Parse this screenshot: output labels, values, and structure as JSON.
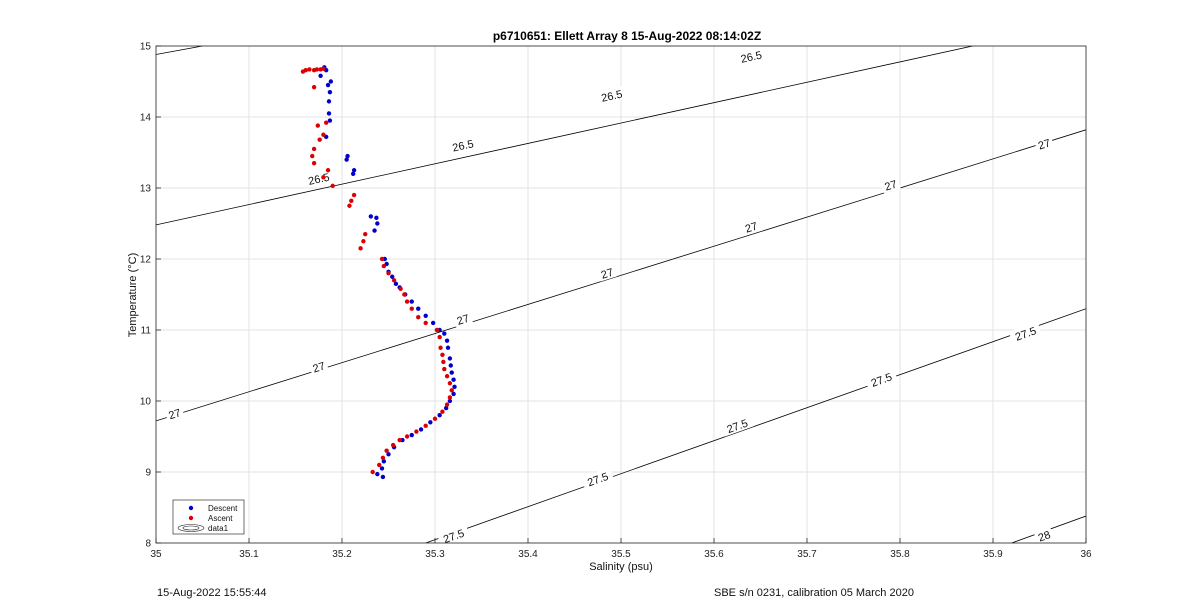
{
  "chart_data": {
    "type": "scatter",
    "title": "p6710651: Ellett Array 8 15-Aug-2022 08:14:02Z",
    "xlabel": "Salinity (psu)",
    "ylabel": "Temperature (°C)",
    "xlim": [
      35,
      36
    ],
    "ylim": [
      8,
      15
    ],
    "xticks": [
      "35",
      "35.1",
      "35.2",
      "35.3",
      "35.4",
      "35.5",
      "35.6",
      "35.7",
      "35.8",
      "35.9",
      "36"
    ],
    "yticks": [
      "8",
      "9",
      "10",
      "11",
      "12",
      "13",
      "14",
      "15"
    ],
    "grid": true,
    "legend_position": "bottom-left",
    "legend": [
      "Descent",
      "Ascent",
      "data1"
    ],
    "colors": {
      "descent": "#0000cc",
      "ascent": "#dd0000",
      "contour": "#000000"
    },
    "series": [
      {
        "name": "Descent",
        "points": [
          [
            35.244,
            8.93
          ],
          [
            35.238,
            8.97
          ],
          [
            35.243,
            9.05
          ],
          [
            35.245,
            9.15
          ],
          [
            35.25,
            9.25
          ],
          [
            35.256,
            9.35
          ],
          [
            35.265,
            9.45
          ],
          [
            35.275,
            9.52
          ],
          [
            35.285,
            9.6
          ],
          [
            35.295,
            9.7
          ],
          [
            35.305,
            9.8
          ],
          [
            35.312,
            9.9
          ],
          [
            35.316,
            10.0
          ],
          [
            35.32,
            10.1
          ],
          [
            35.321,
            10.2
          ],
          [
            35.32,
            10.3
          ],
          [
            35.318,
            10.4
          ],
          [
            35.317,
            10.5
          ],
          [
            35.316,
            10.6
          ],
          [
            35.314,
            10.75
          ],
          [
            35.313,
            10.85
          ],
          [
            35.31,
            10.95
          ],
          [
            35.305,
            11.0
          ],
          [
            35.298,
            11.1
          ],
          [
            35.29,
            11.2
          ],
          [
            35.282,
            11.3
          ],
          [
            35.275,
            11.4
          ],
          [
            35.268,
            11.5
          ],
          [
            35.262,
            11.6
          ],
          [
            35.258,
            11.65
          ],
          [
            35.254,
            11.75
          ],
          [
            35.25,
            11.82
          ],
          [
            35.248,
            11.93
          ],
          [
            35.246,
            12.0
          ],
          [
            35.235,
            12.4
          ],
          [
            35.238,
            12.5
          ],
          [
            35.237,
            12.58
          ],
          [
            35.231,
            12.6
          ],
          [
            35.212,
            13.2
          ],
          [
            35.213,
            13.25
          ],
          [
            35.205,
            13.4
          ],
          [
            35.206,
            13.45
          ],
          [
            35.183,
            13.72
          ],
          [
            35.187,
            13.95
          ],
          [
            35.186,
            14.05
          ],
          [
            35.186,
            14.22
          ],
          [
            35.187,
            14.35
          ],
          [
            35.185,
            14.45
          ],
          [
            35.188,
            14.5
          ],
          [
            35.177,
            14.58
          ],
          [
            35.183,
            14.66
          ],
          [
            35.181,
            14.7
          ]
        ]
      },
      {
        "name": "Ascent",
        "points": [
          [
            35.233,
            9.0
          ],
          [
            35.24,
            9.1
          ],
          [
            35.244,
            9.2
          ],
          [
            35.248,
            9.3
          ],
          [
            35.255,
            9.38
          ],
          [
            35.262,
            9.45
          ],
          [
            35.27,
            9.5
          ],
          [
            35.28,
            9.57
          ],
          [
            35.29,
            9.65
          ],
          [
            35.3,
            9.75
          ],
          [
            35.308,
            9.85
          ],
          [
            35.313,
            9.95
          ],
          [
            35.316,
            10.05
          ],
          [
            35.318,
            10.15
          ],
          [
            35.316,
            10.25
          ],
          [
            35.313,
            10.35
          ],
          [
            35.31,
            10.45
          ],
          [
            35.309,
            10.55
          ],
          [
            35.308,
            10.65
          ],
          [
            35.306,
            10.75
          ],
          [
            35.305,
            10.9
          ],
          [
            35.302,
            11.0
          ],
          [
            35.29,
            11.1
          ],
          [
            35.282,
            11.18
          ],
          [
            35.275,
            11.3
          ],
          [
            35.27,
            11.4
          ],
          [
            35.267,
            11.5
          ],
          [
            35.263,
            11.58
          ],
          [
            35.256,
            11.7
          ],
          [
            35.25,
            11.8
          ],
          [
            35.245,
            11.9
          ],
          [
            35.243,
            12.0
          ],
          [
            35.22,
            12.15
          ],
          [
            35.223,
            12.25
          ],
          [
            35.225,
            12.35
          ],
          [
            35.208,
            12.75
          ],
          [
            35.21,
            12.82
          ],
          [
            35.213,
            12.9
          ],
          [
            35.19,
            13.03
          ],
          [
            35.18,
            13.15
          ],
          [
            35.185,
            13.25
          ],
          [
            35.17,
            13.35
          ],
          [
            35.168,
            13.45
          ],
          [
            35.17,
            13.55
          ],
          [
            35.176,
            13.68
          ],
          [
            35.18,
            13.75
          ],
          [
            35.174,
            13.88
          ],
          [
            35.183,
            13.92
          ],
          [
            35.17,
            14.42
          ],
          [
            35.158,
            14.64
          ],
          [
            35.161,
            14.66
          ],
          [
            35.165,
            14.67
          ],
          [
            35.17,
            14.66
          ],
          [
            35.173,
            14.67
          ],
          [
            35.177,
            14.67
          ],
          [
            35.18,
            14.68
          ]
        ]
      },
      {
        "name": "data1",
        "type": "contour",
        "levels": [
          {
            "value": 26.5,
            "label": "26.5",
            "lines": [
              [
                [
                  35.0,
                  12.48
                ],
                [
                  36.0,
                  15.35
                ]
              ],
              [
                [
                  35.0,
                  14.88
                ],
                [
                  35.05,
                  15.0
                ]
              ]
            ]
          },
          {
            "value": 27,
            "label": "27",
            "lines": [
              [
                [
                  35.0,
                  9.72
                ],
                [
                  36.0,
                  13.82
                ]
              ]
            ]
          },
          {
            "value": 27.5,
            "label": "27.5",
            "lines": [
              [
                [
                  35.29,
                  8.0
                ],
                [
                  36.0,
                  11.3
                ]
              ]
            ]
          },
          {
            "value": 28,
            "label": "28",
            "lines": [
              [
                [
                  35.92,
                  8.0
                ],
                [
                  36.0,
                  8.38
                ]
              ]
            ]
          }
        ],
        "labels": [
          {
            "text": "26.5",
            "at": [
              35.175,
              13.13
            ]
          },
          {
            "text": "26.5",
            "at": [
              35.33,
              13.6
            ]
          },
          {
            "text": "26.5",
            "at": [
              35.49,
              14.3
            ]
          },
          {
            "text": "26.5",
            "at": [
              35.64,
              14.85
            ]
          },
          {
            "text": "27",
            "at": [
              35.02,
              9.82
            ]
          },
          {
            "text": "27",
            "at": [
              35.175,
              10.48
            ]
          },
          {
            "text": "27",
            "at": [
              35.33,
              11.15
            ]
          },
          {
            "text": "27",
            "at": [
              35.485,
              11.8
            ]
          },
          {
            "text": "27",
            "at": [
              35.64,
              12.45
            ]
          },
          {
            "text": "27",
            "at": [
              35.79,
              13.04
            ]
          },
          {
            "text": "27",
            "at": [
              35.955,
              13.62
            ]
          },
          {
            "text": "27.5",
            "at": [
              35.32,
              8.1
            ]
          },
          {
            "text": "27.5",
            "at": [
              35.475,
              8.9
            ]
          },
          {
            "text": "27.5",
            "at": [
              35.625,
              9.65
            ]
          },
          {
            "text": "27.5",
            "at": [
              35.78,
              10.3
            ]
          },
          {
            "text": "27.5",
            "at": [
              35.935,
              10.95
            ]
          },
          {
            "text": "28",
            "at": [
              35.955,
              8.1
            ]
          }
        ]
      }
    ]
  },
  "footer": {
    "timestamp": "15-Aug-2022 15:55:44",
    "calibration": "SBE s/n 0231, calibration 05 March 2020"
  }
}
